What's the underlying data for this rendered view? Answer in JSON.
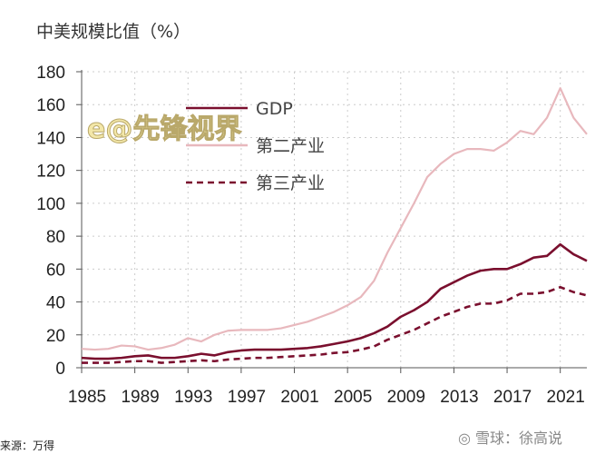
{
  "title": "中美规模比值（%）",
  "source": "来源：万得",
  "credit": "雪球：徐高说",
  "watermark": "e@先锋视界",
  "chart_data": {
    "type": "line",
    "title": "中美规模比值（%）",
    "xlabel": "",
    "ylabel": "",
    "xlim": [
      1985,
      2023
    ],
    "ylim": [
      0,
      180
    ],
    "yticks": [
      0,
      20,
      40,
      60,
      80,
      100,
      120,
      140,
      160,
      180
    ],
    "xticks": [
      1985,
      1989,
      1993,
      1997,
      2001,
      2005,
      2009,
      2013,
      2017,
      2021
    ],
    "grid": true,
    "legend_placement": "top-left",
    "x": [
      1985,
      1986,
      1987,
      1988,
      1989,
      1990,
      1991,
      1992,
      1993,
      1994,
      1995,
      1996,
      1997,
      1998,
      1999,
      2000,
      2001,
      2002,
      2003,
      2004,
      2005,
      2006,
      2007,
      2008,
      2009,
      2010,
      2011,
      2012,
      2013,
      2014,
      2015,
      2016,
      2017,
      2018,
      2019,
      2020,
      2021,
      2022,
      2023
    ],
    "series": [
      {
        "name": "GDP",
        "color": "#7a0f2e",
        "style": "solid",
        "values": [
          6,
          5.5,
          5.5,
          6,
          7,
          7.5,
          6,
          6,
          7,
          8.5,
          7.5,
          9.5,
          10.5,
          11,
          11,
          11,
          11.5,
          12,
          13,
          14.5,
          16,
          18,
          21,
          25,
          31,
          35,
          40,
          48,
          52,
          56,
          59,
          60,
          60,
          63,
          67,
          68,
          75,
          69,
          65
        ]
      },
      {
        "name": "第二产业",
        "color": "#e8b8bd",
        "style": "solid",
        "values": [
          11.5,
          11,
          11.5,
          13.5,
          13,
          11,
          12,
          14,
          18,
          16,
          20,
          22.5,
          23,
          23,
          23,
          24,
          26,
          28,
          31,
          34,
          38,
          43,
          53,
          70,
          85,
          100,
          116,
          124,
          130,
          133,
          133,
          132,
          137,
          144,
          142,
          152,
          170,
          152,
          142
        ]
      },
      {
        "name": "第三产业",
        "color": "#7a0f2e",
        "style": "dashed",
        "values": [
          3,
          3,
          3,
          3.5,
          4,
          4,
          3,
          3.5,
          4,
          4.5,
          4,
          5,
          5.5,
          6,
          6,
          6.5,
          7,
          7.5,
          8,
          9,
          9.5,
          11,
          13,
          17,
          20,
          23,
          27,
          31,
          34,
          37,
          39,
          39,
          41,
          45,
          45,
          46,
          49,
          46,
          44
        ]
      }
    ]
  }
}
